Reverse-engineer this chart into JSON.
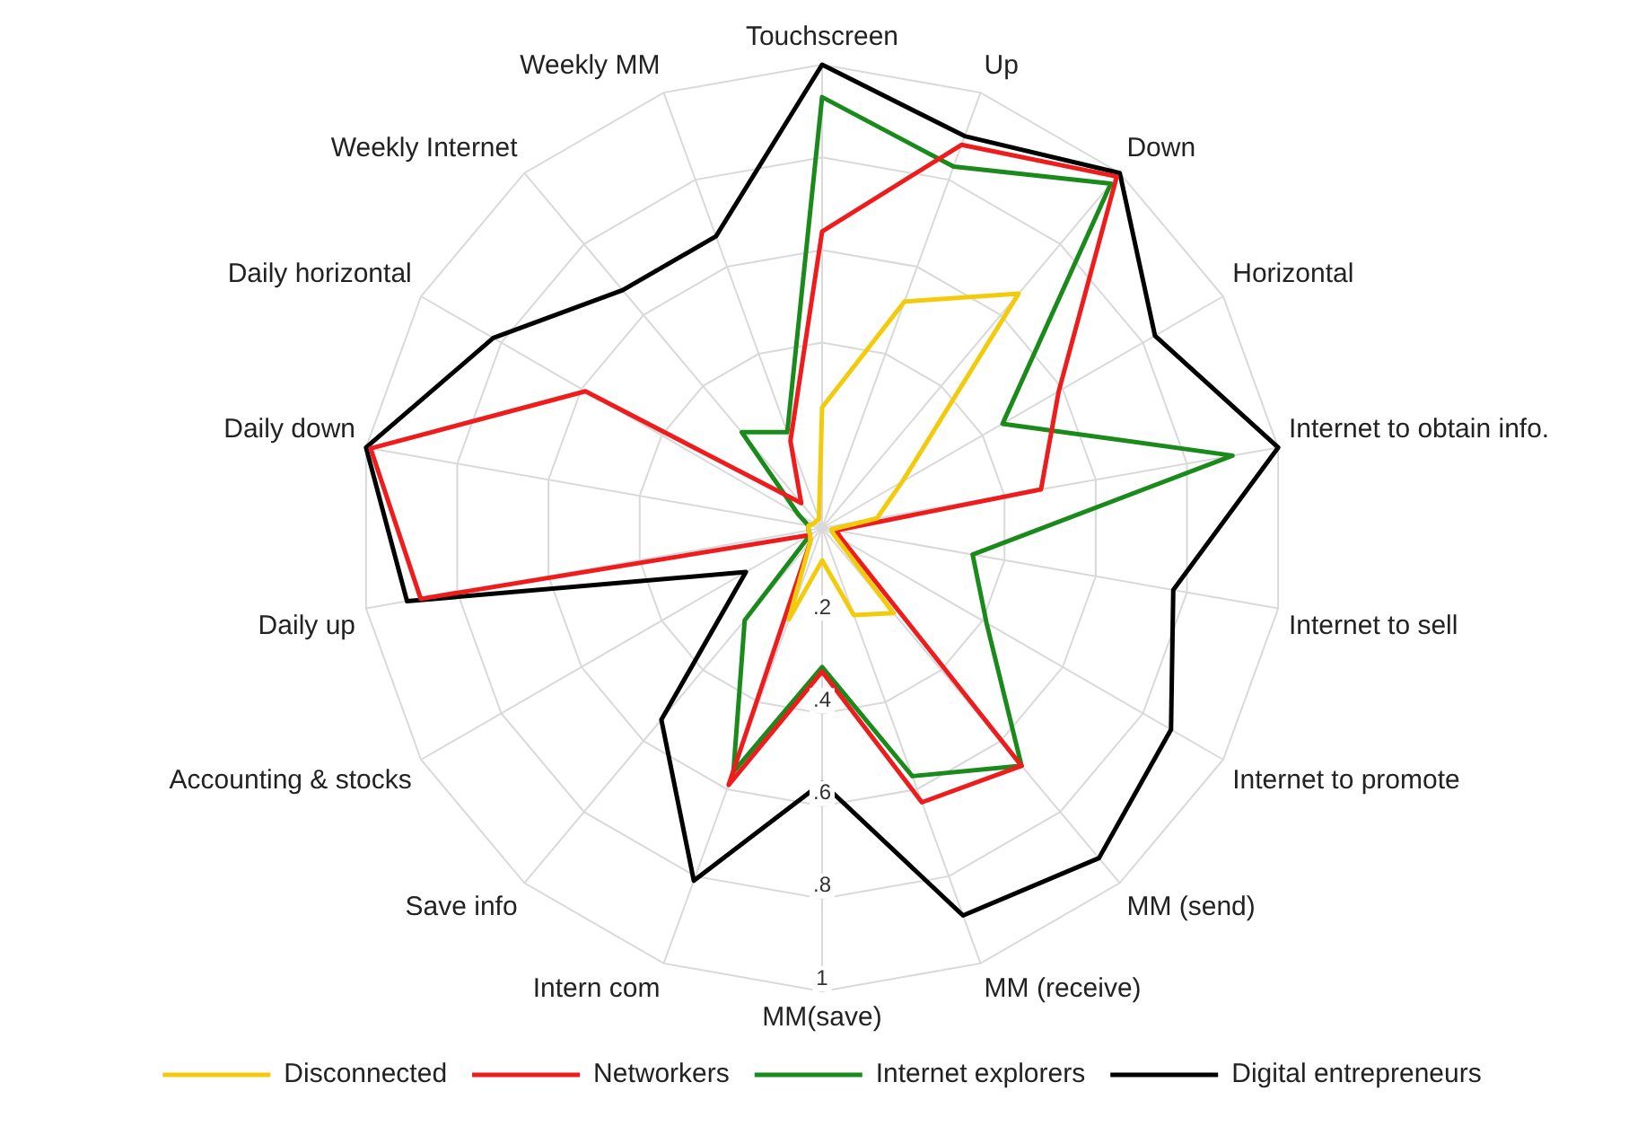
{
  "chart_data": {
    "type": "radar",
    "categories": [
      "Touchscreen",
      "Up",
      "Down",
      "Horizontal",
      "Internet to obtain info.",
      "Internet to sell",
      "Internet to promote",
      "MM (send)",
      "MM (receive)",
      "MM(save)",
      "Intern com",
      "Save info",
      "Accounting & stocks",
      "Daily up",
      "Daily down",
      "Daily horizontal",
      "Weekly Internet",
      "Weekly MM"
    ],
    "series": [
      {
        "name": "Disconnected",
        "color": "#f2cc0c",
        "values": [
          0.26,
          0.52,
          0.66,
          0.2,
          0.12,
          0.02,
          0.03,
          0.24,
          0.2,
          0.07,
          0.21,
          0.04,
          0.03,
          0.03,
          0.03,
          0.02,
          0.02,
          0.02
        ]
      },
      {
        "name": "Networkers",
        "color": "#ee1c1c",
        "values": [
          0.64,
          0.88,
          0.99,
          0.59,
          0.48,
          0.03,
          0.05,
          0.67,
          0.63,
          0.31,
          0.59,
          0.04,
          0.03,
          0.88,
          0.99,
          0.59,
          0.07,
          0.2
        ]
      },
      {
        "name": "Internet explorers",
        "color": "#1a8a1a",
        "values": [
          0.93,
          0.83,
          0.97,
          0.45,
          0.9,
          0.33,
          0.41,
          0.67,
          0.57,
          0.3,
          0.56,
          0.26,
          0.03,
          0.03,
          0.03,
          0.06,
          0.27,
          0.22
        ]
      },
      {
        "name": "Digital entrepreneurs",
        "color": "#000000",
        "values": [
          1.0,
          0.9,
          1.0,
          0.83,
          1.0,
          0.77,
          0.87,
          0.93,
          0.89,
          0.55,
          0.81,
          0.54,
          0.19,
          0.91,
          1.0,
          0.82,
          0.67,
          0.67
        ]
      }
    ],
    "ylim": [
      0,
      1
    ],
    "yticks": [
      {
        "value": 0.2,
        "label": ".2"
      },
      {
        "value": 0.4,
        "label": ".4"
      },
      {
        "value": 0.6,
        "label": ".6"
      },
      {
        "value": 0.8,
        "label": ".8"
      },
      {
        "value": 1,
        "label": "1"
      }
    ],
    "grid": true,
    "legend": "bottom",
    "marker": "none",
    "line_style": "solid"
  }
}
